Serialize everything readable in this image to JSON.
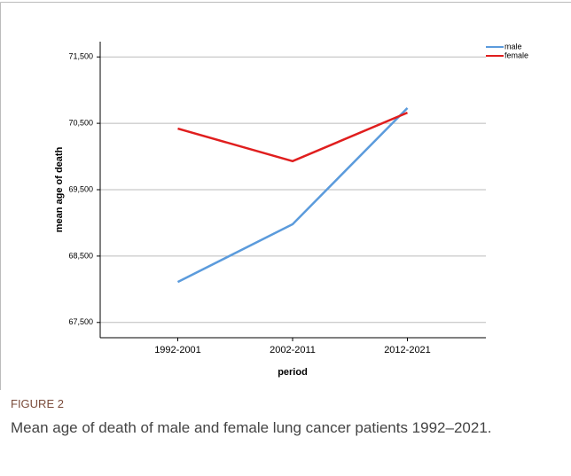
{
  "chart_data": {
    "type": "line",
    "x_label": "period",
    "y_label": "mean age of death",
    "categories": [
      "1992-2001",
      "2002-2011",
      "2012-2021"
    ],
    "series": [
      {
        "name": "male",
        "color": "#5b9bdc",
        "values": [
          68.11,
          68.98,
          70.73
        ]
      },
      {
        "name": "female",
        "color": "#e01e1e",
        "values": [
          70.42,
          69.93,
          70.66
        ]
      }
    ],
    "ylim": [
      67.27,
      71.73
    ],
    "yticks": [
      {
        "value": 67.5,
        "label": "67,500"
      },
      {
        "value": 68.5,
        "label": "68,500"
      },
      {
        "value": 69.5,
        "label": "69,500"
      },
      {
        "value": 70.5,
        "label": "70,500"
      },
      {
        "value": 71.5,
        "label": "71,500"
      }
    ],
    "grid": true,
    "legend": "top-right"
  },
  "caption": {
    "label": "FIGURE 2",
    "text": "Mean age of death of male and female lung cancer patients 1992–2021."
  }
}
